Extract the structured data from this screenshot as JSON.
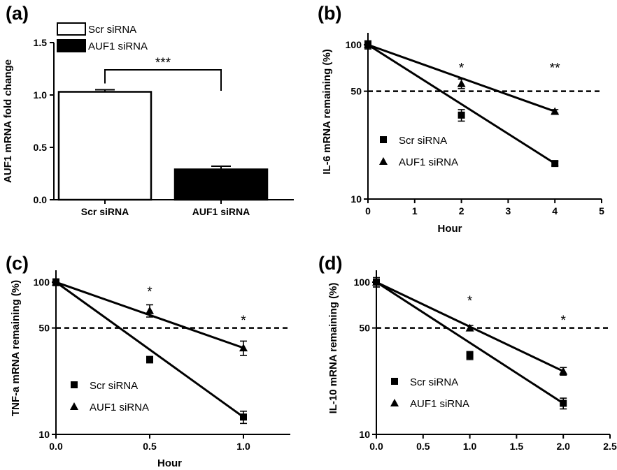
{
  "chart_data": [
    {
      "panel": "(a)",
      "type": "bar",
      "categories": [
        "Scr siRNA",
        "AUF1 siRNA"
      ],
      "values": [
        1.03,
        0.29
      ],
      "errors": [
        0.02,
        0.03
      ],
      "bar_fill": [
        "#ffffff",
        "#000000"
      ],
      "ylabel": "AUF1 mRNA fold change",
      "ylim": [
        0,
        1.5
      ],
      "yticks": [
        "0.0",
        "0.5",
        "1.0",
        "1.5"
      ],
      "legend": [
        "Scr siRNA",
        "AUF1 siRNA"
      ],
      "significance": "***"
    },
    {
      "panel": "(b)",
      "type": "scatter",
      "yscale": "log",
      "ylabel": "IL-6 mRNA remaining (%)",
      "xlabel": "Hour",
      "xlim": [
        0,
        5
      ],
      "xticks": [
        "0",
        "1",
        "2",
        "3",
        "4",
        "5"
      ],
      "ylim": [
        10,
        110
      ],
      "yticks": [
        "10",
        "50",
        "100"
      ],
      "reference_line": 50,
      "series": [
        {
          "name": "Scr siRNA",
          "marker": "square",
          "x": [
            0,
            2,
            4
          ],
          "y": [
            100,
            35,
            17
          ],
          "err": [
            6,
            3,
            0.6
          ],
          "fit": [
            [
              0,
              100
            ],
            [
              4,
              17
            ]
          ]
        },
        {
          "name": "AUF1 siRNA",
          "marker": "triangle",
          "x": [
            0,
            2,
            4
          ],
          "y": [
            100,
            56,
            37
          ],
          "err": [
            6,
            4,
            1
          ],
          "fit": [
            [
              0,
              100
            ],
            [
              4,
              37
            ]
          ]
        }
      ],
      "annotations": [
        {
          "text": "*",
          "x": 2,
          "y": 72
        },
        {
          "text": "**",
          "x": 4,
          "y": 72
        }
      ]
    },
    {
      "panel": "(c)",
      "type": "scatter",
      "yscale": "log",
      "ylabel": "TNF-a mRNA remaining (%)",
      "xlabel": "Hour",
      "xlim": [
        0,
        1.25
      ],
      "xticks": [
        "0.0",
        "0.5",
        "1.0"
      ],
      "ylim": [
        10,
        110
      ],
      "yticks": [
        "10",
        "50",
        "100"
      ],
      "reference_line": 50,
      "series": [
        {
          "name": "Scr siRNA",
          "marker": "square",
          "x": [
            0,
            0.5,
            1.0
          ],
          "y": [
            100,
            31,
            13
          ],
          "err": [
            5,
            1.5,
            1.2
          ],
          "fit": [
            [
              0,
              100
            ],
            [
              1.0,
              13
            ]
          ]
        },
        {
          "name": "AUF1 siRNA",
          "marker": "triangle",
          "x": [
            0,
            0.5,
            1.0
          ],
          "y": [
            100,
            65,
            37
          ],
          "err": [
            5,
            6,
            4
          ],
          "fit": [
            [
              0,
              100
            ],
            [
              1.0,
              37
            ]
          ]
        }
      ],
      "annotations": [
        {
          "text": "*",
          "x": 0.5,
          "y": 88
        },
        {
          "text": "*",
          "x": 1.0,
          "y": 57
        }
      ]
    },
    {
      "panel": "(d)",
      "type": "scatter",
      "yscale": "log",
      "ylabel": "IL-10 mRNA remaining (%)",
      "xlabel": "",
      "xlim": [
        0,
        2.5
      ],
      "xticks": [
        "0.0",
        "0.5",
        "1.0",
        "1.5",
        "2.0",
        "2.5"
      ],
      "ylim": [
        10,
        110
      ],
      "yticks": [
        "10",
        "50",
        "100"
      ],
      "reference_line": 50,
      "series": [
        {
          "name": "Scr siRNA",
          "marker": "square",
          "x": [
            0,
            1.0,
            2.0
          ],
          "y": [
            100,
            33,
            16
          ],
          "err": [
            7,
            2,
            1.3
          ],
          "fit": [
            [
              0,
              100
            ],
            [
              2.0,
              16
            ]
          ]
        },
        {
          "name": "AUF1 siRNA",
          "marker": "triangle",
          "x": [
            0,
            1.0,
            2.0
          ],
          "y": [
            100,
            50,
            26
          ],
          "err": [
            7,
            2,
            1.5
          ],
          "fit": [
            [
              0,
              100
            ],
            [
              2.0,
              26
            ]
          ]
        }
      ],
      "annotations": [
        {
          "text": "*",
          "x": 1.0,
          "y": 77
        },
        {
          "text": "*",
          "x": 2.0,
          "y": 57
        }
      ]
    }
  ]
}
